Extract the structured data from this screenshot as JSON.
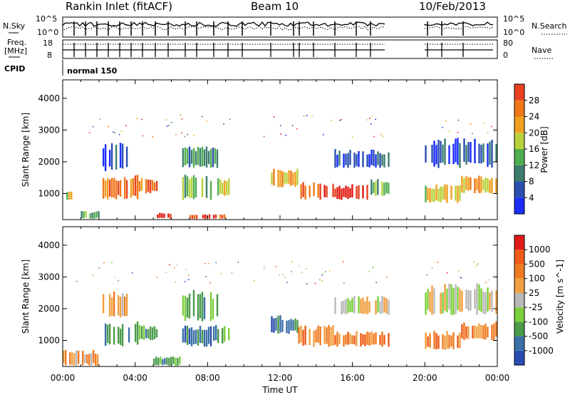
{
  "header": {
    "station": "Rankin Inlet (fitACF)",
    "beam": "Beam 10",
    "date": "10/Feb/2013"
  },
  "aux_panels": {
    "nsky_label": "N.Sky",
    "nsky_ticks": [
      "10^5",
      "10^0"
    ],
    "nsearch_label": "N.Search",
    "nsearch_ticks": [
      "10^5",
      "10^0"
    ],
    "freq_label_1": "Freq.",
    "freq_label_2": "[MHz]",
    "freq_ticks": [
      "18",
      "8"
    ],
    "nave_label": "Nave",
    "nave_ticks": [
      "80",
      "0"
    ],
    "cpid_label": "CPID",
    "cpid_value": "normal 150"
  },
  "colors": {
    "power": [
      "#1a2cff",
      "#2a4fb0",
      "#3c7d6e",
      "#4fae4f",
      "#b8d23c",
      "#f0a020",
      "#f07818",
      "#e84020",
      "#e01a10"
    ],
    "velocity": [
      "#e01a1a",
      "#f05a18",
      "#f07a20",
      "#f0a040",
      "#b8b8b8",
      "#7ccf3c",
      "#4a9a4a",
      "#3a6fa8",
      "#2a4cb0"
    ]
  },
  "chart_data": [
    {
      "type": "heatmap",
      "title": "Power",
      "xlabel": "Time UT",
      "ylabel": "Slant Range [km]",
      "x_ticks": [
        "00:00",
        "04:00",
        "08:00",
        "12:00",
        "16:00",
        "20:00",
        "00:00"
      ],
      "xlim_hours": [
        0,
        24
      ],
      "y_ticks": [
        1000,
        2000,
        3000,
        4000
      ],
      "ylim_km": [
        180,
        4580
      ],
      "colorbar": {
        "label": "Power [dB]",
        "ticks": [
          4,
          8,
          12,
          16,
          20,
          24,
          28
        ],
        "range": [
          0,
          32
        ]
      },
      "blocks": [
        {
          "t": [
            0.2,
            0.5
          ],
          "r": [
            800,
            1100
          ],
          "level": 4
        },
        {
          "t": [
            1.0,
            2.0
          ],
          "r": [
            200,
            450
          ],
          "level": 3
        },
        {
          "t": [
            2.2,
            4.2
          ],
          "r": [
            800,
            1600
          ],
          "level": 6
        },
        {
          "t": [
            2.2,
            3.5
          ],
          "r": [
            1700,
            2600
          ],
          "level": 1
        },
        {
          "t": [
            4.2,
            5.2
          ],
          "r": [
            1000,
            1500
          ],
          "level": 6
        },
        {
          "t": [
            5.2,
            6.0
          ],
          "r": [
            200,
            400
          ],
          "level": 8
        },
        {
          "t": [
            6.6,
            8.2
          ],
          "r": [
            800,
            1600
          ],
          "level": 3
        },
        {
          "t": [
            6.6,
            8.5
          ],
          "r": [
            1800,
            2500
          ],
          "level": 2
        },
        {
          "t": [
            7.0,
            9.0
          ],
          "r": [
            200,
            350
          ],
          "level": 7
        },
        {
          "t": [
            8.3,
            9.2
          ],
          "r": [
            900,
            1500
          ],
          "level": 4
        },
        {
          "t": [
            11.5,
            13.0
          ],
          "r": [
            1200,
            1800
          ],
          "level": 5
        },
        {
          "t": [
            13.0,
            15.0
          ],
          "r": [
            800,
            1400
          ],
          "level": 7
        },
        {
          "t": [
            15.0,
            17.0
          ],
          "r": [
            800,
            1300
          ],
          "level": 8
        },
        {
          "t": [
            17.0,
            18.0
          ],
          "r": [
            900,
            1500
          ],
          "level": 3
        },
        {
          "t": [
            15.0,
            18.0
          ],
          "r": [
            1800,
            2400
          ],
          "level": 1
        },
        {
          "t": [
            20.0,
            22.0
          ],
          "r": [
            700,
            1300
          ],
          "level": 4
        },
        {
          "t": [
            22.0,
            24.0
          ],
          "r": [
            1000,
            1600
          ],
          "level": 5
        },
        {
          "t": [
            20.0,
            24.0
          ],
          "r": [
            1800,
            2800
          ],
          "level": 1
        }
      ]
    },
    {
      "type": "heatmap",
      "title": "Velocity",
      "xlabel": "Time UT",
      "ylabel": "Slant Range [km]",
      "x_ticks": [
        "00:00",
        "04:00",
        "08:00",
        "12:00",
        "16:00",
        "20:00",
        "00:00"
      ],
      "xlim_hours": [
        0,
        24
      ],
      "y_ticks": [
        1000,
        2000,
        3000,
        4000
      ],
      "ylim_km": [
        180,
        4580
      ],
      "colorbar": {
        "label": "Velocity [m s^-1]",
        "ticks": [
          "1000",
          "500",
          "100",
          "25",
          "-25",
          "-100",
          "-500",
          "-1000"
        ]
      },
      "blocks": [
        {
          "t": [
            0.0,
            2.0
          ],
          "r": [
            200,
            700
          ],
          "level": 3
        },
        {
          "t": [
            2.2,
            4.2
          ],
          "r": [
            800,
            1600
          ],
          "level": 6
        },
        {
          "t": [
            2.2,
            3.5
          ],
          "r": [
            1700,
            2600
          ],
          "level": 3
        },
        {
          "t": [
            4.2,
            5.2
          ],
          "r": [
            1000,
            1500
          ],
          "level": 6
        },
        {
          "t": [
            5.0,
            6.5
          ],
          "r": [
            200,
            500
          ],
          "level": 6
        },
        {
          "t": [
            6.6,
            8.5
          ],
          "r": [
            1600,
            2600
          ],
          "level": 6
        },
        {
          "t": [
            6.6,
            8.2
          ],
          "r": [
            800,
            1500
          ],
          "level": 7
        },
        {
          "t": [
            8.3,
            9.2
          ],
          "r": [
            900,
            1500
          ],
          "level": 6
        },
        {
          "t": [
            11.5,
            13.0
          ],
          "r": [
            1200,
            1800
          ],
          "level": 7
        },
        {
          "t": [
            13.0,
            15.0
          ],
          "r": [
            800,
            1500
          ],
          "level": 2
        },
        {
          "t": [
            15.0,
            18.0
          ],
          "r": [
            800,
            1300
          ],
          "level": 2
        },
        {
          "t": [
            15.0,
            18.0
          ],
          "r": [
            1800,
            2400
          ],
          "level": 4
        },
        {
          "t": [
            20.0,
            22.0
          ],
          "r": [
            700,
            1300
          ],
          "level": 2
        },
        {
          "t": [
            22.0,
            24.0
          ],
          "r": [
            1000,
            1600
          ],
          "level": 2
        },
        {
          "t": [
            20.0,
            24.0
          ],
          "r": [
            1800,
            2800
          ],
          "level": 4
        }
      ]
    }
  ]
}
